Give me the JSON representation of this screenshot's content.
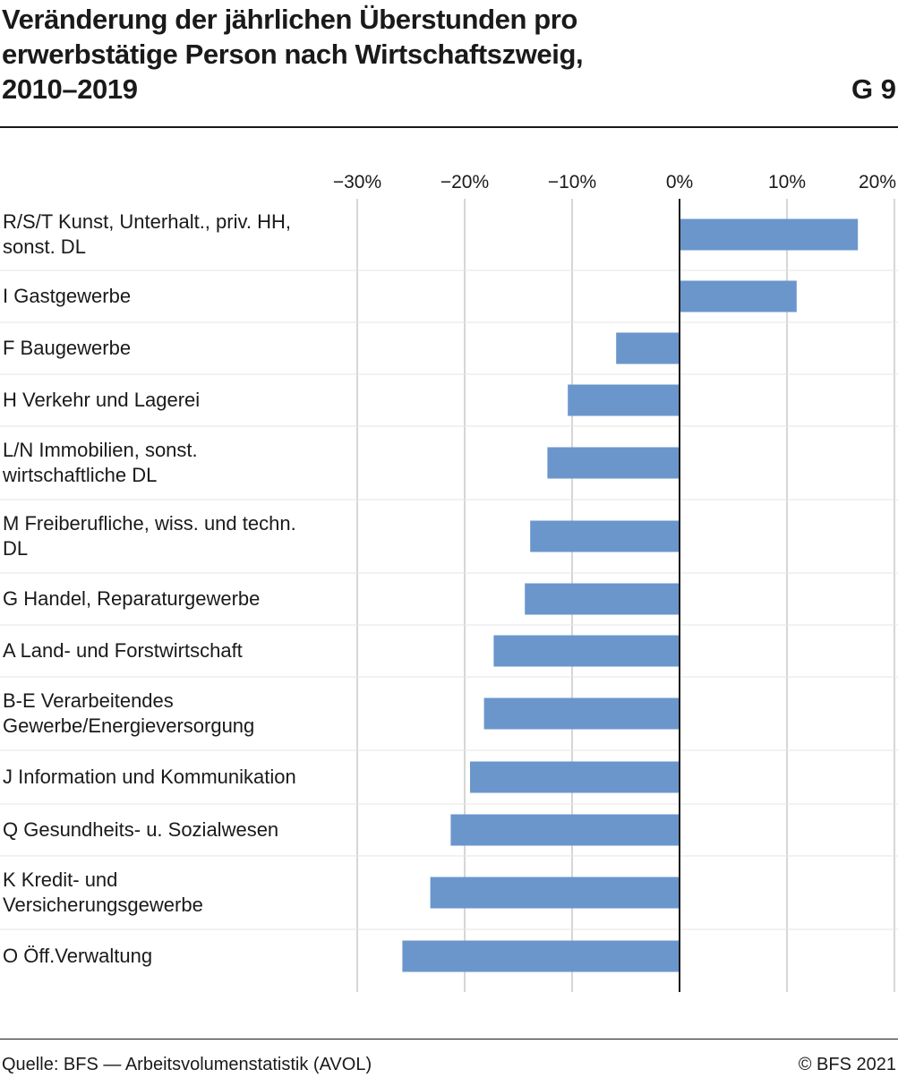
{
  "title_lines": [
    "Veränderung der jährlichen Überstunden pro",
    "erwerbstätige Person nach Wirtschaftszweig,",
    "2010–2019"
  ],
  "figure_number": "G 9",
  "source": "Quelle: BFS — Arbeitsvolumenstatistik (AVOL)",
  "copyright": "© BFS 2021",
  "colors": {
    "bar": "#6a96cc",
    "grid": "#d6d6d6",
    "separator": "#e6e6e6",
    "axis": "#1a1a1a",
    "text": "#1a1a1a"
  },
  "chart_data": {
    "type": "bar",
    "orientation": "horizontal",
    "xlim": [
      -30,
      20
    ],
    "ticks": [
      -30,
      -20,
      -10,
      0,
      10,
      20
    ],
    "tick_labels": [
      "−30%",
      "−20%",
      "−10%",
      "0%",
      "10%",
      "20%"
    ],
    "grid": true,
    "categories": [
      [
        "R/S/T Kunst, Unterhalt., priv. HH,",
        "sonst. DL"
      ],
      [
        "I Gastgewerbe"
      ],
      [
        "F Baugewerbe"
      ],
      [
        "H Verkehr und Lagerei"
      ],
      [
        "L/N Immobilien, sonst.",
        "wirtschaftliche DL"
      ],
      [
        "M Freiberufliche, wiss. und techn.",
        "DL"
      ],
      [
        "G Handel, Reparaturgewerbe"
      ],
      [
        "A Land- und Forstwirtschaft"
      ],
      [
        "B-E Verarbeitendes",
        "Gewerbe/Energieversorgung"
      ],
      [
        "J Information und Kommunikation"
      ],
      [
        "Q Gesundheits- u. Sozialwesen"
      ],
      [
        "K Kredit- und",
        "Versicherungsgewerbe"
      ],
      [
        "O Öff.Verwaltung"
      ]
    ],
    "values": [
      16.6,
      10.9,
      -5.9,
      -10.4,
      -12.3,
      -13.9,
      -14.4,
      -17.3,
      -18.2,
      -19.5,
      -21.3,
      -23.2,
      -25.8
    ]
  }
}
